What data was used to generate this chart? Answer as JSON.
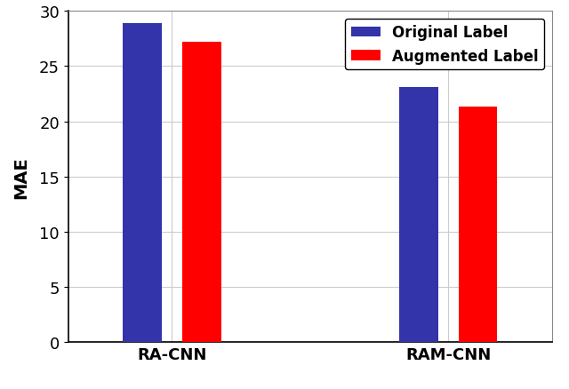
{
  "categories": [
    "RA-CNN",
    "RAM-CNN"
  ],
  "original_values": [
    28.9,
    23.1
  ],
  "augmented_values": [
    27.2,
    21.3
  ],
  "original_color": "#3333AA",
  "augmented_color": "#FF0000",
  "ylabel": "MAE",
  "ylim": [
    0,
    30
  ],
  "yticks": [
    0,
    5,
    10,
    15,
    20,
    25,
    30
  ],
  "legend_labels": [
    "Original Label",
    "Augmented Label"
  ],
  "bar_width": 0.28,
  "background_color": "#ffffff",
  "grid_color": "#cccccc",
  "tick_fontsize": 13,
  "label_fontsize": 14,
  "legend_fontsize": 12
}
